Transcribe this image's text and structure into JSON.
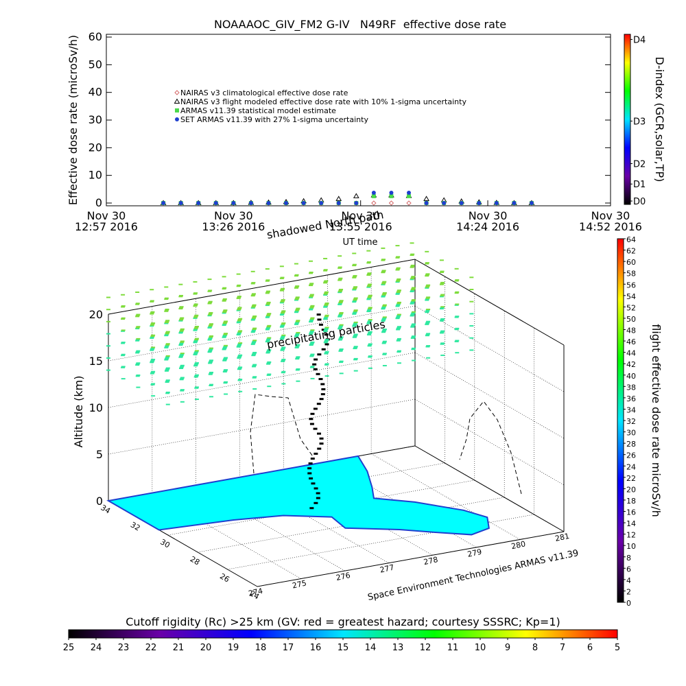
{
  "chart_data": [
    {
      "type": "scatter",
      "title": "NOAAAOC_GIV_FM2 G-IV   N49RF  effective dose rate",
      "y_label": "Effective dose rate (microSv/h)",
      "x_label": "UT time",
      "x": [
        "13:10",
        "13:14",
        "13:18",
        "13:22",
        "13:26",
        "13:30",
        "13:34",
        "13:38",
        "13:42",
        "13:46",
        "13:50",
        "13:54",
        "13:58",
        "14:02",
        "14:06",
        "14:10",
        "14:14",
        "14:18",
        "14:22",
        "14:26",
        "14:30",
        "14:34"
      ],
      "xlim": [
        "12:57",
        "14:52"
      ],
      "xticks": [
        {
          "value": "12:57",
          "label": [
            "Nov 30",
            "12:57 2016"
          ]
        },
        {
          "value": "13:26",
          "label": [
            "Nov 30",
            "13:26 2016"
          ]
        },
        {
          "value": "13:55",
          "label": [
            "Nov 30",
            "13:55 2016"
          ]
        },
        {
          "value": "14:24",
          "label": [
            "Nov 30",
            "14:24 2016"
          ]
        },
        {
          "value": "14:52",
          "label": [
            "Nov 30",
            "14:52 2016"
          ]
        }
      ],
      "ylim": [
        -1,
        61
      ],
      "yticks": [
        0,
        10,
        20,
        30,
        40,
        50,
        60
      ],
      "series": [
        {
          "name": "NAIRAS v3 climatological effective dose rate",
          "color": "#d46a6a",
          "marker": "diamond",
          "values": [
            0,
            0,
            0,
            0,
            0,
            0,
            0,
            0,
            0,
            0,
            0,
            0,
            0,
            0,
            0,
            0,
            0,
            0,
            0,
            0,
            0,
            0
          ]
        },
        {
          "name": "NAIRAS v3 flight modeled effective dose rate with 10% 1-sigma uncertainty",
          "color": "#000000",
          "marker": "triangle",
          "values": [
            0,
            0,
            0,
            0,
            0,
            0.1,
            0.2,
            0.4,
            0.7,
            1,
            1.5,
            2.5,
            2.8,
            2.8,
            2.6,
            1.5,
            1,
            0.6,
            0.3,
            0.1,
            0,
            0
          ]
        },
        {
          "name": "ARMAS v11.39 statistical model estimate",
          "color": "#4cd94c",
          "marker": "square",
          "values": [
            0,
            0,
            0,
            0,
            0,
            0,
            0,
            0,
            0,
            0,
            0,
            0,
            2.5,
            2.5,
            2.5,
            0,
            0,
            0,
            0,
            0,
            0,
            0
          ]
        },
        {
          "name": "SET ARMAS v11.39 with 27% 1-sigma uncertainty",
          "color": "#1f3fcf",
          "marker": "circle",
          "values": [
            0,
            0,
            0,
            0,
            0,
            0,
            0,
            0,
            0,
            0,
            0,
            0,
            3.7,
            3.7,
            3.7,
            0,
            0,
            0,
            0,
            0,
            0,
            0
          ]
        }
      ]
    },
    {
      "type": "colorbar",
      "orientation": "vertical",
      "label": "D-index (GCR,solar,TP)",
      "colors": [
        "#000000",
        "#6a00a8",
        "#0000ff",
        "#00e5ff",
        "#00ff00",
        "#ffff00",
        "#ff0000"
      ],
      "ylim": [
        0,
        100
      ],
      "yticks": [
        {
          "value": 2,
          "label": "D0"
        },
        {
          "value": 12,
          "label": "D1"
        },
        {
          "value": 24,
          "label": "D2"
        },
        {
          "value": 49,
          "label": "D3"
        },
        {
          "value": 97,
          "label": "D4"
        }
      ]
    },
    {
      "type": "3d",
      "z_label": "Altitude (km)",
      "annotations": [
        "shadowed North path",
        "precipitating particles",
        "Space Environment Technologies ARMAS v11.39"
      ],
      "xlim": [
        274,
        281
      ],
      "xticks": [
        274,
        275,
        276,
        277,
        278,
        279,
        280,
        281
      ],
      "ylim": [
        34,
        24
      ],
      "yticks": [
        34,
        32,
        30,
        28,
        26,
        24
      ],
      "zlim": [
        0,
        20
      ],
      "zticks": [
        0,
        5,
        10,
        15,
        20
      ],
      "land_color": "#00ffff"
    },
    {
      "type": "colorbar",
      "orientation": "vertical",
      "label": "flight effective dose rate microSv/h",
      "colors": [
        "#000000",
        "#6a00a8",
        "#0000ff",
        "#00e5ff",
        "#00ff00",
        "#ffff00",
        "#ff0000"
      ],
      "ylim": [
        0,
        64
      ],
      "yticks": [
        0,
        2,
        4,
        6,
        8,
        10,
        12,
        14,
        16,
        18,
        20,
        22,
        24,
        26,
        28,
        30,
        32,
        34,
        36,
        38,
        40,
        42,
        44,
        46,
        48,
        50,
        52,
        54,
        56,
        58,
        60,
        62,
        64
      ]
    },
    {
      "type": "colorbar",
      "orientation": "horizontal",
      "label": "Cutoff rigidity (Rc) >25 km (GV: red = greatest hazard; courtesy SSSRC; Kp=1)",
      "colors": [
        "#000000",
        "#6a00a8",
        "#0000ff",
        "#00e5ff",
        "#00ff00",
        "#ffff00",
        "#ff0000"
      ],
      "xlim": [
        25,
        5
      ],
      "xticks": [
        25,
        24,
        23,
        22,
        21,
        20,
        19,
        18,
        17,
        16,
        15,
        14,
        13,
        12,
        11,
        10,
        9,
        8,
        7,
        6,
        5
      ]
    }
  ]
}
